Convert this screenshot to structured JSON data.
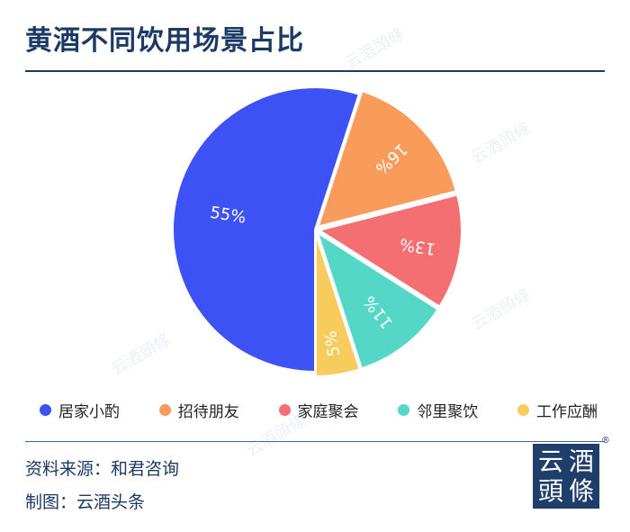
{
  "title": "黄酒不同饮用场景占比",
  "source": "资料来源：和君咨询",
  "author": "制图：云酒头条",
  "logo": {
    "chars": [
      "云",
      "酒",
      "頭",
      "條"
    ],
    "registered": "®"
  },
  "watermark": "云酒頭條",
  "chart_data": {
    "type": "pie",
    "title": "黄酒不同饮用场景占比",
    "categories": [
      "居家小酌",
      "招待朋友",
      "家庭聚会",
      "邻里聚饮",
      "工作应酬"
    ],
    "values": [
      55,
      16,
      13,
      11,
      5
    ],
    "labels": [
      "55%",
      "16%",
      "13%",
      "11%",
      "5%"
    ],
    "colors": [
      "#3d52f5",
      "#f89b5b",
      "#f46f72",
      "#55d7c8",
      "#f7cc5d"
    ],
    "unit": "%",
    "legend_position": "bottom"
  }
}
